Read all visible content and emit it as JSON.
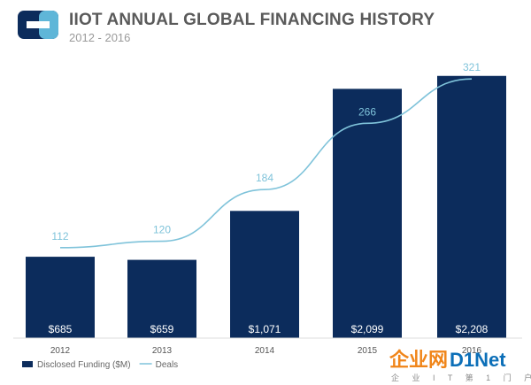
{
  "header": {
    "title": "IIOT ANNUAL GLOBAL FINANCING HISTORY",
    "subtitle": "2012 - 2016"
  },
  "colors": {
    "bar": "#0c2c5c",
    "line": "#7fc3da",
    "logo_dark": "#0c2c5c",
    "logo_light": "#5fb6d8",
    "watermark_orange": "#f08519"
  },
  "chart_data": {
    "type": "bar",
    "categories": [
      "2012",
      "2013",
      "2014",
      "2015",
      "2016"
    ],
    "series": [
      {
        "name": "Disclosed Funding ($M)",
        "type": "bar",
        "values": [
          685,
          659,
          1071,
          2099,
          2208
        ],
        "labels": [
          "$685",
          "$659",
          "$1,071",
          "$2,099",
          "$2,208"
        ]
      },
      {
        "name": "Deals",
        "type": "line",
        "values": [
          112,
          120,
          184,
          266,
          321
        ],
        "labels": [
          "112",
          "120",
          "184",
          "266",
          "321"
        ]
      }
    ],
    "bar_range": [
      0,
      2400
    ],
    "line_range": [
      0,
      353
    ],
    "legend_position": "bottom-left",
    "grid": false
  },
  "watermark": {
    "brand_part1": "企业网",
    "brand_part2": "D1Net",
    "tagline": "企 业 I T 第 1 门 户"
  }
}
